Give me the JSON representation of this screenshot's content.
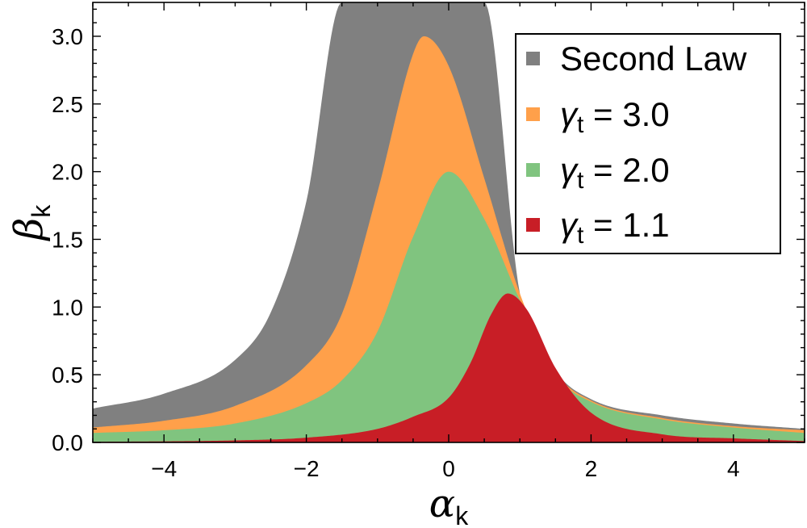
{
  "chart_data": {
    "type": "area",
    "xlabel": {
      "symbol": "α",
      "subscript": "k"
    },
    "ylabel": {
      "symbol": "β",
      "subscript": "k"
    },
    "xlim": [
      -5,
      5
    ],
    "ylim": [
      0,
      3.25
    ],
    "x_ticks": [
      -4,
      -2,
      0,
      2,
      4
    ],
    "x_tick_labels": [
      "−4",
      "−2",
      "0",
      "2",
      "4"
    ],
    "y_ticks": [
      0.0,
      0.5,
      1.0,
      1.5,
      2.0,
      2.5,
      3.0
    ],
    "y_tick_labels": [
      "0.0",
      "0.5",
      "1.0",
      "1.5",
      "2.0",
      "2.5",
      "3.0"
    ],
    "legend_position": "top-right",
    "series": [
      {
        "name": "Second Law",
        "color": "#808080",
        "x": [
          -5,
          -4,
          -3,
          -2.5,
          -2,
          -1.5,
          -1,
          0.5,
          1,
          1.5,
          2,
          3,
          4,
          5
        ],
        "y": [
          0.25,
          0.36,
          0.61,
          0.96,
          1.78,
          3.25,
          3.25,
          3.25,
          1.1,
          0.53,
          0.32,
          0.2,
          0.14,
          0.1
        ]
      },
      {
        "name_prefix": "γ",
        "name_sub": "t",
        "name_suffix": " = 3.0",
        "color": "#ffa04a",
        "x": [
          -5,
          -4,
          -3,
          -2,
          -1.5,
          -1,
          -0.5,
          -0.35,
          0,
          0.5,
          1,
          1.5,
          2,
          3,
          4,
          5
        ],
        "y": [
          0.11,
          0.16,
          0.27,
          0.57,
          0.95,
          1.85,
          2.87,
          3.0,
          2.78,
          1.95,
          1.1,
          0.52,
          0.31,
          0.18,
          0.12,
          0.09
        ]
      },
      {
        "name_prefix": "γ",
        "name_sub": "t",
        "name_suffix": " = 2.0",
        "color": "#80c47f",
        "x": [
          -5,
          -4,
          -3,
          -2,
          -1.5,
          -1,
          -0.5,
          0,
          0.5,
          1,
          1.5,
          2,
          3,
          4,
          5
        ],
        "y": [
          0.07,
          0.09,
          0.14,
          0.29,
          0.46,
          0.82,
          1.52,
          2.0,
          1.65,
          1.05,
          0.5,
          0.3,
          0.17,
          0.11,
          0.07
        ]
      },
      {
        "name_prefix": "γ",
        "name_sub": "t",
        "name_suffix": " = 1.1",
        "color": "#c81e26",
        "x": [
          -5,
          -4,
          -3,
          -2,
          -1,
          -0.5,
          0,
          0.3,
          0.6,
          0.83,
          1.1,
          1.5,
          2,
          3,
          4,
          5
        ],
        "y": [
          0.005,
          0.008,
          0.015,
          0.035,
          0.1,
          0.19,
          0.33,
          0.58,
          0.95,
          1.1,
          0.98,
          0.55,
          0.22,
          0.06,
          0.03,
          0.01
        ]
      }
    ]
  }
}
